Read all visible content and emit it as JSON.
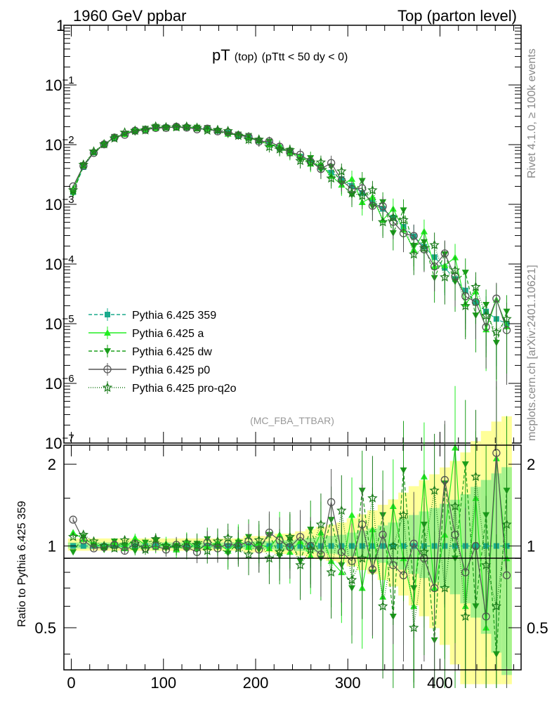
{
  "header": {
    "left": "1960 GeV ppbar",
    "right": "Top (parton level)"
  },
  "side_labels": {
    "rivet": "Rivet 4.1.0, ≥ 100k events",
    "mcplots": "mcplots.cern.ch [arXiv:2401.10621]"
  },
  "chart_data": {
    "type": "line",
    "title_main": "pT",
    "title_sub1": "(top)",
    "title_sub2": "(pTtt < 50 dy < 0)",
    "watermark": "(MC_FBA_TTBAR)",
    "xlabel": "",
    "ylabel_ratio": "Ratio to Pythia 6.425 359",
    "xlim": [
      -8,
      488
    ],
    "ylim_main": [
      1e-07,
      1
    ],
    "ylim_ratio": [
      0.35,
      2.35
    ],
    "main_ytick_labels": [
      "1",
      "10",
      "−1",
      "10",
      "−2",
      "10",
      "−3",
      "10",
      "−4",
      "10",
      "−5",
      "10",
      "−6",
      "10",
      "−7"
    ],
    "main_yticks": [
      {
        "mant": "1",
        "exp": ""
      },
      {
        "mant": "10",
        "exp": "−1"
      },
      {
        "mant": "10",
        "exp": "−2"
      },
      {
        "mant": "10",
        "exp": "−3"
      },
      {
        "mant": "10",
        "exp": "−4"
      },
      {
        "mant": "10",
        "exp": "−5"
      },
      {
        "mant": "10",
        "exp": "−6"
      },
      {
        "mant": "10",
        "exp": "−7"
      }
    ],
    "ratio_yticks": [
      "2",
      "1",
      "0.5"
    ],
    "xticks": [
      "0",
      "100",
      "200",
      "300",
      "400"
    ],
    "series": [
      {
        "name": "Pythia 6.425 359",
        "color": "#1aaa8c",
        "marker": "square",
        "dash": "5,3",
        "values": [
          0.0016,
          0.0042,
          0.0074,
          0.0102,
          0.013,
          0.0152,
          0.0168,
          0.018,
          0.019,
          0.0196,
          0.0198,
          0.0195,
          0.019,
          0.018,
          0.017,
          0.0158,
          0.0144,
          0.013,
          0.0116,
          0.0102,
          0.0088,
          0.0075,
          0.0063,
          0.0052,
          0.0042,
          0.0034,
          0.00265,
          0.00205,
          0.00155,
          0.00115,
          0.00084,
          0.0006,
          0.00042,
          0.00029,
          0.000195,
          0.00013,
          8.6e-05,
          5.6e-05,
          3.6e-05,
          2.3e-05,
          1.6e-05,
          1.2e-05,
          1e-05
        ]
      },
      {
        "name": "Pythia 6.425 a",
        "color": "#22ee22",
        "marker": "triangle-up",
        "dash": "",
        "ratio": [
          1.12,
          1.06,
          1.02,
          0.99,
          1.03,
          0.98,
          1.07,
          1.01,
          0.99,
          1.02,
          0.97,
          1.04,
          0.98,
          1.0,
          1.03,
          0.96,
          1.05,
          0.99,
          1.02,
          0.98,
          1.1,
          0.95,
          1.04,
          0.92,
          1.12,
          0.88,
          0.8,
          1.3,
          0.7,
          1.15,
          0.65,
          1.4,
          0.9,
          0.6,
          1.8,
          0.7,
          1.1,
          2.3,
          0.6,
          1.5,
          0.5,
          2.1,
          0.9
        ]
      },
      {
        "name": "Pythia 6.425 dw",
        "color": "#1a9e1a",
        "marker": "triangle-down",
        "dash": "5,3",
        "ratio": [
          0.95,
          1.08,
          1.0,
          0.97,
          1.04,
          1.0,
          0.96,
          1.03,
          1.05,
          0.98,
          1.0,
          0.97,
          1.02,
          1.06,
          0.99,
          0.94,
          1.03,
          1.08,
          0.97,
          1.1,
          0.92,
          1.06,
          0.88,
          1.15,
          0.9,
          1.25,
          0.85,
          0.7,
          1.6,
          0.8,
          1.3,
          0.55,
          1.9,
          0.7,
          1.2,
          0.45,
          1.7,
          0.9,
          2.0,
          0.6,
          1.3,
          0.4,
          1.6
        ]
      },
      {
        "name": "Pythia 6.425 p0",
        "color": "#555555",
        "marker": "circle-open",
        "dash": "",
        "ratio": [
          1.25,
          1.05,
          0.98,
          0.99,
          1.01,
          0.96,
          1.02,
          0.98,
          1.0,
          0.97,
          1.01,
          0.99,
          0.95,
          1.03,
          0.98,
          1.02,
          1.0,
          1.04,
          0.97,
          1.12,
          1.05,
          0.99,
          1.08,
          1.0,
          0.93,
          1.45,
          0.95,
          0.88,
          1.2,
          0.82,
          1.1,
          0.85,
          0.78,
          1.02,
          0.9,
          0.7,
          1.75,
          1.1,
          0.8,
          1.0,
          0.55,
          2.2,
          0.78
        ]
      },
      {
        "name": "Pythia 6.425 pro-q2o",
        "color": "#1a7a1a",
        "marker": "star-open",
        "dash": "1,2",
        "ratio": [
          1.08,
          1.1,
          1.04,
          1.0,
          0.98,
          1.05,
          1.02,
          0.97,
          1.06,
          1.0,
          0.99,
          1.03,
          1.01,
          0.96,
          1.04,
          1.07,
          0.98,
          0.93,
          1.05,
          0.9,
          0.95,
          1.08,
          0.85,
          0.97,
          1.2,
          0.8,
          1.35,
          0.75,
          0.9,
          1.5,
          0.6,
          1.0,
          1.3,
          0.5,
          0.95,
          1.6,
          0.7,
          1.4,
          0.55,
          1.8,
          0.85,
          0.6,
          1.2
        ]
      }
    ],
    "band_halfwidth": [
      0.03,
      0.03,
      0.03,
      0.03,
      0.03,
      0.03,
      0.03,
      0.03,
      0.03,
      0.03,
      0.03,
      0.03,
      0.03,
      0.03,
      0.03,
      0.03,
      0.03,
      0.04,
      0.04,
      0.04,
      0.05,
      0.05,
      0.06,
      0.07,
      0.08,
      0.09,
      0.1,
      0.12,
      0.14,
      0.16,
      0.19,
      0.22,
      0.26,
      0.3,
      0.34,
      0.38,
      0.43,
      0.48,
      0.55,
      0.65,
      0.75,
      0.85,
      0.95
    ]
  }
}
